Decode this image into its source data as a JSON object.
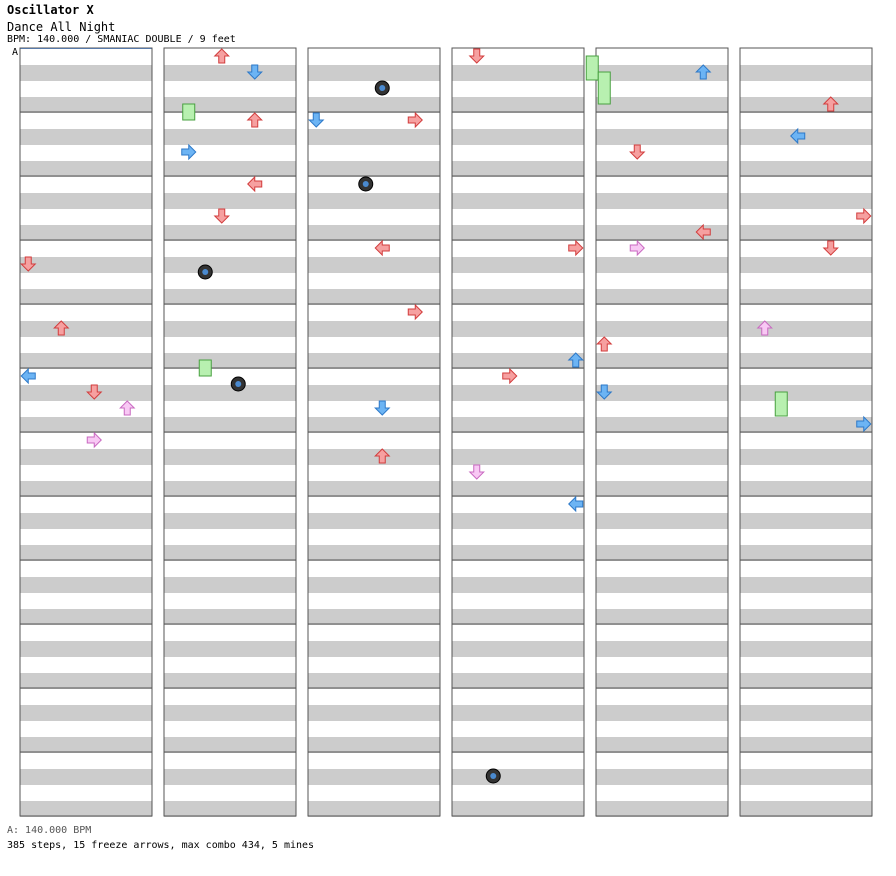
{
  "header": {
    "title": "Oscillator X",
    "song": "Dance All Night",
    "info": "BPM: 140.000 / SMANIAC DOUBLE / 9 feet",
    "bpm_marker": "A"
  },
  "footer": {
    "bpm_line": "A: 140.000 BPM",
    "stats": "385 steps, 15 freeze arrows, max combo 434, 5 mines"
  },
  "colors": {
    "red": "#f6a0a0",
    "red_edge": "#d23c3c",
    "blue": "#6cb4f4",
    "blue_edge": "#2c78c8",
    "pink": "#f8c8f4",
    "pink_edge": "#c868c0",
    "freeze": "#b8f0b0",
    "freeze_edge": "#48a040",
    "stripe": "#cccccc"
  },
  "chart_data": {
    "type": "step-chart",
    "columns": 6,
    "measures_per_column": 12,
    "lanes": 8,
    "notes": [
      [
        0,
        3,
        2,
        "down",
        "red"
      ],
      [
        0,
        4,
        2,
        "up",
        "red"
      ],
      [
        0,
        4,
        8,
        "left",
        "blue"
      ],
      [
        0,
        5,
        2,
        "down",
        "red"
      ],
      [
        0,
        6,
        0,
        "right",
        "pink"
      ],
      [
        0,
        5,
        4,
        "up",
        "pink"
      ],
      [
        1,
        0,
        0,
        "up",
        "red"
      ],
      [
        1,
        0,
        2,
        "down",
        "blue"
      ],
      [
        1,
        1,
        4,
        "right",
        "blue"
      ],
      [
        1,
        1,
        8,
        "left",
        "red"
      ],
      [
        1,
        1,
        0,
        "up",
        "red"
      ],
      [
        1,
        2,
        4,
        "down",
        "red"
      ],
      [
        2,
        0,
        8,
        "right",
        "red"
      ],
      [
        2,
        1,
        0,
        "down",
        "blue"
      ],
      [
        2,
        3,
        0,
        "left",
        "red"
      ],
      [
        2,
        4,
        0,
        "right",
        "red"
      ],
      [
        2,
        5,
        4,
        "down",
        "blue"
      ],
      [
        2,
        6,
        2,
        "up",
        "red"
      ],
      [
        3,
        0,
        0,
        "down",
        "red"
      ],
      [
        3,
        3,
        0,
        "right",
        "red"
      ],
      [
        3,
        4,
        6,
        "up",
        "blue"
      ],
      [
        3,
        5,
        0,
        "right",
        "red"
      ],
      [
        3,
        6,
        4,
        "down",
        "pink"
      ],
      [
        3,
        7,
        0,
        "left",
        "blue"
      ],
      [
        4,
        0,
        2,
        "up",
        "blue"
      ],
      [
        4,
        1,
        4,
        "down",
        "red"
      ],
      [
        4,
        2,
        6,
        "left",
        "red"
      ],
      [
        4,
        3,
        0,
        "right",
        "pink"
      ],
      [
        4,
        4,
        4,
        "up",
        "red"
      ],
      [
        4,
        5,
        2,
        "down",
        "blue"
      ],
      [
        5,
        0,
        6,
        "up",
        "red"
      ],
      [
        5,
        1,
        2,
        "left",
        "blue"
      ],
      [
        5,
        2,
        4,
        "right",
        "red"
      ],
      [
        5,
        3,
        0,
        "down",
        "red"
      ],
      [
        5,
        4,
        2,
        "up",
        "pink"
      ],
      [
        5,
        5,
        6,
        "right",
        "blue"
      ]
    ],
    "freezes": [
      [
        1,
        0,
        6,
        1,
        2,
        "freeze"
      ],
      [
        1,
        4,
        6,
        2,
        2,
        "freeze"
      ],
      [
        3,
        0,
        0,
        8,
        3,
        "freeze"
      ],
      [
        4,
        0,
        2,
        0,
        4,
        "freeze"
      ],
      [
        5,
        5,
        2,
        2,
        3,
        "freeze"
      ]
    ],
    "mines": [
      [
        1,
        3,
        3,
        2
      ],
      [
        1,
        5,
        1,
        4
      ],
      [
        2,
        0,
        4,
        4
      ],
      [
        2,
        1,
        8,
        3
      ],
      [
        3,
        11,
        2,
        2
      ]
    ]
  }
}
